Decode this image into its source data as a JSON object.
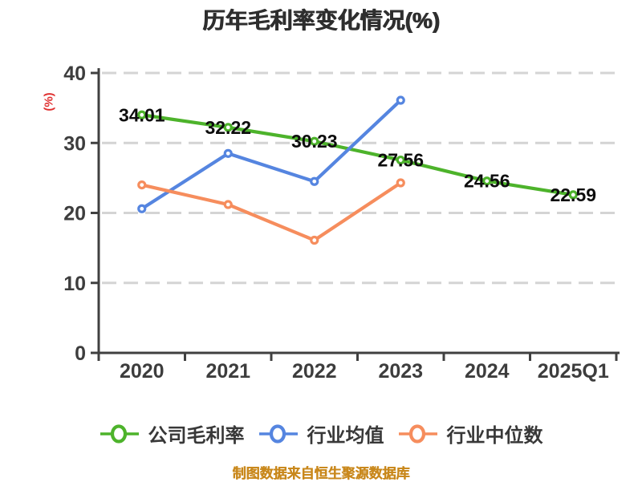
{
  "chart_data": {
    "type": "line",
    "title": "历年毛利率变化情况(%)",
    "ylabel": "(%)",
    "footer": "制图数据来自恒生聚源数据库",
    "categories": [
      "2020",
      "2021",
      "2022",
      "2023",
      "2024",
      "2025Q1"
    ],
    "yticks": [
      0,
      10,
      20,
      30,
      40
    ],
    "ylim": [
      0,
      40
    ],
    "grid": "horizontal-dashed",
    "legend_position": "bottom",
    "series": [
      {
        "id": "company-gross-margin",
        "name": "公司毛利率",
        "color": "#4db32b",
        "values": [
          34.01,
          32.22,
          30.23,
          27.56,
          24.56,
          22.59
        ],
        "point_labels": [
          "34.01",
          "32.22",
          "30.23",
          "27.56",
          "24.56",
          "22.59"
        ]
      },
      {
        "id": "industry-average",
        "name": "行业均值",
        "color": "#5585e0",
        "values": [
          20.6,
          28.5,
          24.5,
          36.1
        ],
        "point_labels": []
      },
      {
        "id": "industry-median",
        "name": "行业中位数",
        "color": "#f68d5d",
        "values": [
          24.0,
          21.2,
          16.1,
          24.3
        ],
        "point_labels": []
      }
    ]
  },
  "colors": {
    "title_text": "#2e2e2e",
    "axis": "#404040",
    "tick_text": "#3d3d3d",
    "gridline": "#d4d4d4",
    "ylabel_text": "#e03030",
    "footer_text": "#c9881c",
    "data_label_text": "#0d0d0d",
    "marker_fill": "#ffffff",
    "legend_text": "#383838"
  }
}
